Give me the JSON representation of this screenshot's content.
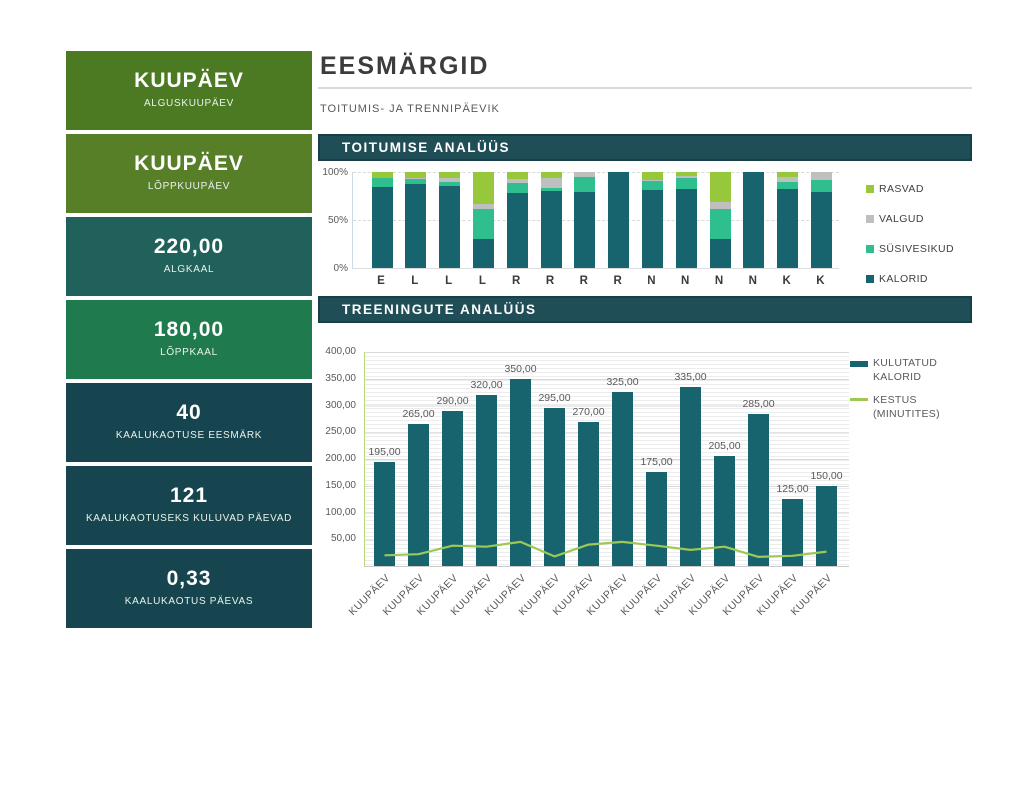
{
  "app": {
    "title": "EESMÄRGID",
    "subtitle": "TOITUMIS- JA TRENNIPÄEVIK"
  },
  "sections": {
    "nutrition": "TOITUMISE ANALÜÜS",
    "training": "TREENINGUTE ANALÜÜS"
  },
  "sidebar": {
    "items": [
      {
        "value": "KUUPÄEV",
        "label": "ALGUSKUUPÄEV",
        "color": "#4c7a22"
      },
      {
        "value": "KUUPÄEV",
        "label": "LÕPPKUUPÄEV",
        "color": "#567f28"
      },
      {
        "value": "220,00",
        "label": "ALGKAAL",
        "color": "#20615b"
      },
      {
        "value": "180,00",
        "label": "LÕPPKAAL",
        "color": "#1f7a4e"
      },
      {
        "value": "40",
        "label": "KAALUKAOTUSE EESMÄRK",
        "color": "#16454f"
      },
      {
        "value": "121",
        "label": "KAALUKAOTUSEKS KULUVAD PÄEVAD",
        "color": "#16454f"
      },
      {
        "value": "0,33",
        "label": "KAALUKAOTUS PÄEVAS",
        "color": "#16454f"
      }
    ]
  },
  "colors": {
    "header_bar": "#1f4e57",
    "dark_teal": "#17646f",
    "medium_green": "#2fbe8d",
    "gray": "#bfbfbf",
    "lime": "#97c83c",
    "line_green": "#9dc853",
    "axis_green": "#b9d877"
  },
  "chart_data": [
    {
      "type": "bar",
      "subtype": "stacked-100",
      "title": "TOITUMISE ANALÜÜS",
      "categories": [
        "E",
        "L",
        "L",
        "L",
        "R",
        "R",
        "R",
        "R",
        "N",
        "N",
        "N",
        "N",
        "K",
        "K"
      ],
      "series": [
        {
          "name": "KALORID",
          "color": "#17646f",
          "values": [
            84,
            88,
            85,
            30,
            78,
            80,
            79,
            100,
            81,
            82,
            30,
            100,
            82,
            79
          ]
        },
        {
          "name": "SÜSIVESIKUD",
          "color": "#2fbe8d",
          "values": [
            10,
            5,
            5,
            31,
            11,
            3,
            16,
            0,
            10,
            12,
            31,
            0,
            8,
            13
          ]
        },
        {
          "name": "VALGUD",
          "color": "#bfbfbf",
          "values": [
            0,
            1,
            4,
            6,
            4,
            11,
            5,
            0,
            1,
            2,
            8,
            0,
            5,
            8
          ]
        },
        {
          "name": "RASVAD",
          "color": "#97c83c",
          "values": [
            6,
            6,
            6,
            33,
            7,
            6,
            0,
            0,
            8,
            4,
            31,
            0,
            5,
            0
          ]
        }
      ],
      "legend_order": [
        "RASVAD",
        "VALGUD",
        "SÜSIVESIKUD",
        "KALORID"
      ],
      "legend_position": "right",
      "yticks": [
        "100%",
        "50%",
        "0%"
      ],
      "ylim": [
        0,
        100
      ],
      "grid": "dashed horizontal at 50% and 100%"
    },
    {
      "type": "bar",
      "subtype": "bar-with-line",
      "title": "TREENINGUTE ANALÜÜS",
      "categories": [
        "KUUPÄEV",
        "KUUPÄEV",
        "KUUPÄEV",
        "KUUPÄEV",
        "KUUPÄEV",
        "KUUPÄEV",
        "KUUPÄEV",
        "KUUPÄEV",
        "KUUPÄEV",
        "KUUPÄEV",
        "KUUPÄEV",
        "KUUPÄEV",
        "KUUPÄEV",
        "KUUPÄEV"
      ],
      "series": [
        {
          "name": "KULUTATUD KALORID",
          "type": "bar",
          "color": "#17646f",
          "values": [
            195,
            265,
            290,
            320,
            350,
            295,
            270,
            325,
            175,
            335,
            205,
            285,
            125,
            150
          ],
          "labels": [
            "195,00",
            "265,00",
            "290,00",
            "320,00",
            "350,00",
            "295,00",
            "270,00",
            "325,00",
            "175,00",
            "335,00",
            "205,00",
            "285,00",
            "125,00",
            "150,00"
          ]
        },
        {
          "name": "KESTUS (MINUTITES)",
          "type": "line",
          "color": "#9dc853",
          "values": [
            20,
            22,
            38,
            36,
            45,
            18,
            40,
            45,
            38,
            30,
            36,
            17,
            19,
            27
          ]
        }
      ],
      "legend_position": "right",
      "yticks": [
        "400,00",
        "350,00",
        "300,00",
        "250,00",
        "200,00",
        "150,00",
        "100,00",
        "50,00"
      ],
      "ylim": [
        0,
        400
      ],
      "grid": "fine horizontal pinstripes with major lines every 50"
    }
  ]
}
